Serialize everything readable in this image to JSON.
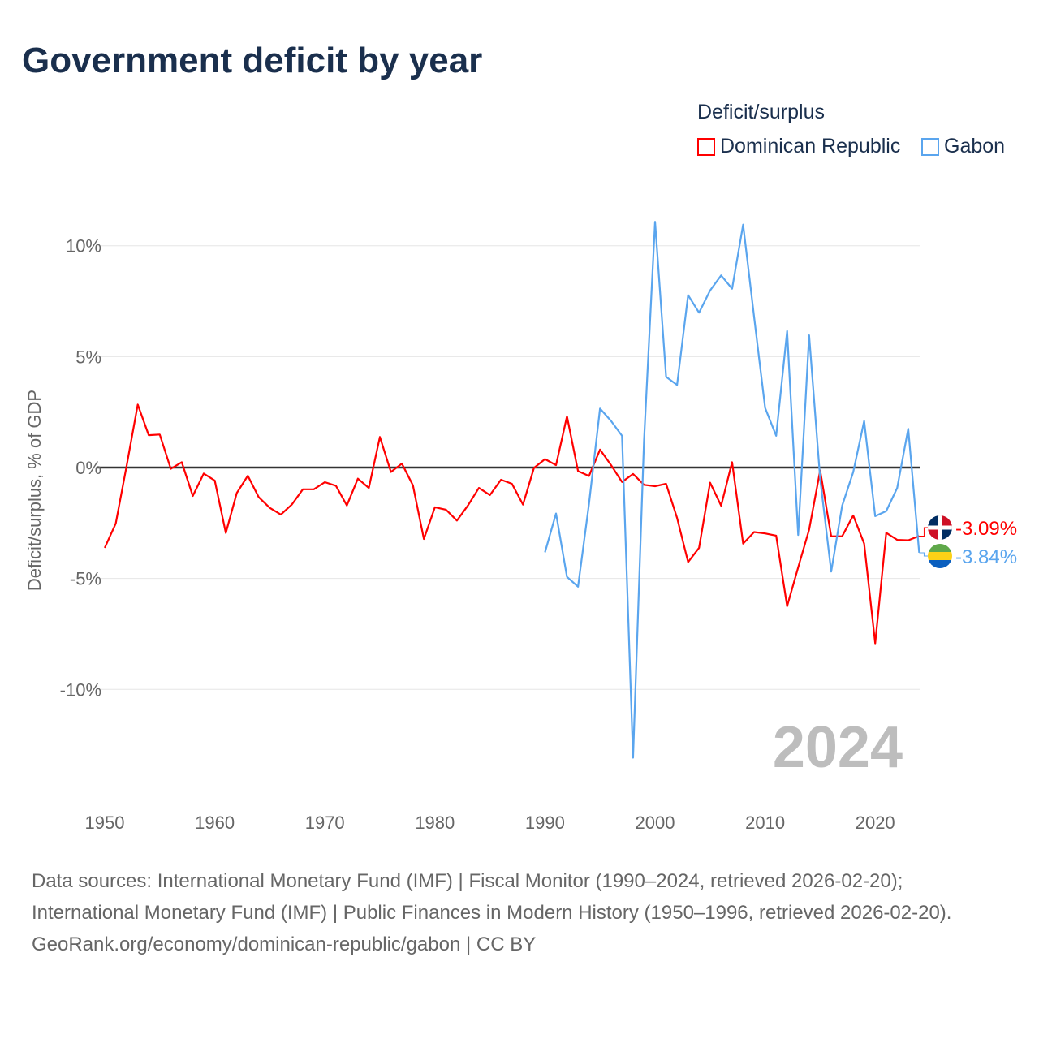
{
  "title": "Government deficit by year",
  "legend": {
    "title": "Deficit/surplus",
    "items": [
      {
        "label": "Dominican Republic",
        "color": "#ff0000"
      },
      {
        "label": "Gabon",
        "color": "#5aa5ee"
      }
    ]
  },
  "footer": {
    "sources": "Data sources: International Monetary Fund (IMF) | Fiscal Monitor (1990–2024, retrieved 2026-02-20); International Monetary Fund (IMF) | Public Finances in Modern History (1950–1996, retrieved 2026-02-20).",
    "credit": "GeoRank.org/economy/dominican-republic/gabon | CC BY"
  },
  "chart_data": {
    "type": "line",
    "title": "Government deficit by year",
    "ylabel": "Deficit/surplus, % of GDP",
    "xlabel": "",
    "xlim": [
      1950,
      2024
    ],
    "ylim": [
      -13.5,
      11.5
    ],
    "yticks": [
      {
        "v": 10,
        "label": "10%"
      },
      {
        "v": 5,
        "label": "5%"
      },
      {
        "v": 0,
        "label": "0%"
      },
      {
        "v": -5,
        "label": "-5%"
      },
      {
        "v": -10,
        "label": "-10%"
      }
    ],
    "xticks": [
      1950,
      1960,
      1970,
      1980,
      1990,
      2000,
      2010,
      2020
    ],
    "year_label": "2024",
    "series": [
      {
        "name": "Dominican Republic",
        "color": "#ff0000",
        "end_label": "-3.09%",
        "start": 1950,
        "values": [
          -3.62,
          -2.52,
          0.1,
          2.84,
          1.46,
          1.49,
          -0.06,
          0.24,
          -1.28,
          -0.27,
          -0.59,
          -2.95,
          -1.15,
          -0.37,
          -1.34,
          -1.82,
          -2.12,
          -1.67,
          -0.98,
          -0.98,
          -0.66,
          -0.82,
          -1.71,
          -0.5,
          -0.92,
          1.38,
          -0.2,
          0.18,
          -0.8,
          -3.22,
          -1.79,
          -1.9,
          -2.39,
          -1.71,
          -0.92,
          -1.24,
          -0.55,
          -0.73,
          -1.67,
          -0.02,
          0.38,
          0.11,
          2.31,
          -0.16,
          -0.38,
          0.81,
          0.11,
          -0.65,
          -0.29,
          -0.78,
          -0.84,
          -0.73,
          -2.27,
          -4.26,
          -3.62,
          -0.68,
          -1.72,
          0.24,
          -3.43,
          -2.91,
          -2.97,
          -3.07,
          -6.25,
          -4.5,
          -2.8,
          -0.13,
          -3.1,
          -3.1,
          -2.16,
          -3.43,
          -7.92,
          -2.94,
          -3.26,
          -3.28,
          -3.09
        ]
      },
      {
        "name": "Gabon",
        "color": "#5aa5ee",
        "end_label": "-3.84%",
        "start": 1990,
        "values": [
          -3.82,
          -2.07,
          -4.93,
          -5.37,
          -1.64,
          2.66,
          2.1,
          1.43,
          -13.08,
          1.2,
          11.08,
          4.09,
          3.72,
          7.77,
          6.98,
          7.98,
          8.66,
          8.06,
          10.95,
          6.8,
          2.69,
          1.43,
          6.15,
          -3.04,
          5.96,
          -0.5,
          -4.69,
          -1.72,
          -0.21,
          2.1,
          -2.19,
          -1.96,
          -0.92,
          1.75,
          -3.84
        ]
      }
    ]
  }
}
